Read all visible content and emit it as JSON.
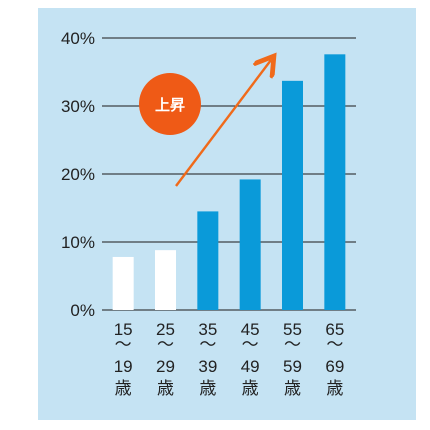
{
  "chart_data": {
    "type": "bar",
    "categories": [
      [
        "15",
        "～",
        "19",
        "歳"
      ],
      [
        "25",
        "～",
        "29",
        "歳"
      ],
      [
        "35",
        "～",
        "39",
        "歳"
      ],
      [
        "45",
        "～",
        "49",
        "歳"
      ],
      [
        "55",
        "～",
        "59",
        "歳"
      ],
      [
        "65",
        "～",
        "69",
        "歳"
      ]
    ],
    "values": [
      7.8,
      8.8,
      14.5,
      19.2,
      33.7,
      37.6
    ],
    "highlight": [
      false,
      false,
      true,
      true,
      true,
      true
    ],
    "ylim": [
      0,
      40
    ],
    "yticks": [
      0,
      10,
      20,
      30,
      40
    ],
    "ytick_labels": [
      "0%",
      "10%",
      "20%",
      "30%",
      "40%"
    ],
    "grid": true,
    "annotation": {
      "text": "上昇"
    }
  },
  "colors": {
    "background": "#c5e3f3",
    "bar_highlight": "#0a9ad9",
    "bar_plain": "#ffffff",
    "arrow": "#f06a1a",
    "badge": "#ef5a16",
    "grid": "#1a1a1a"
  }
}
